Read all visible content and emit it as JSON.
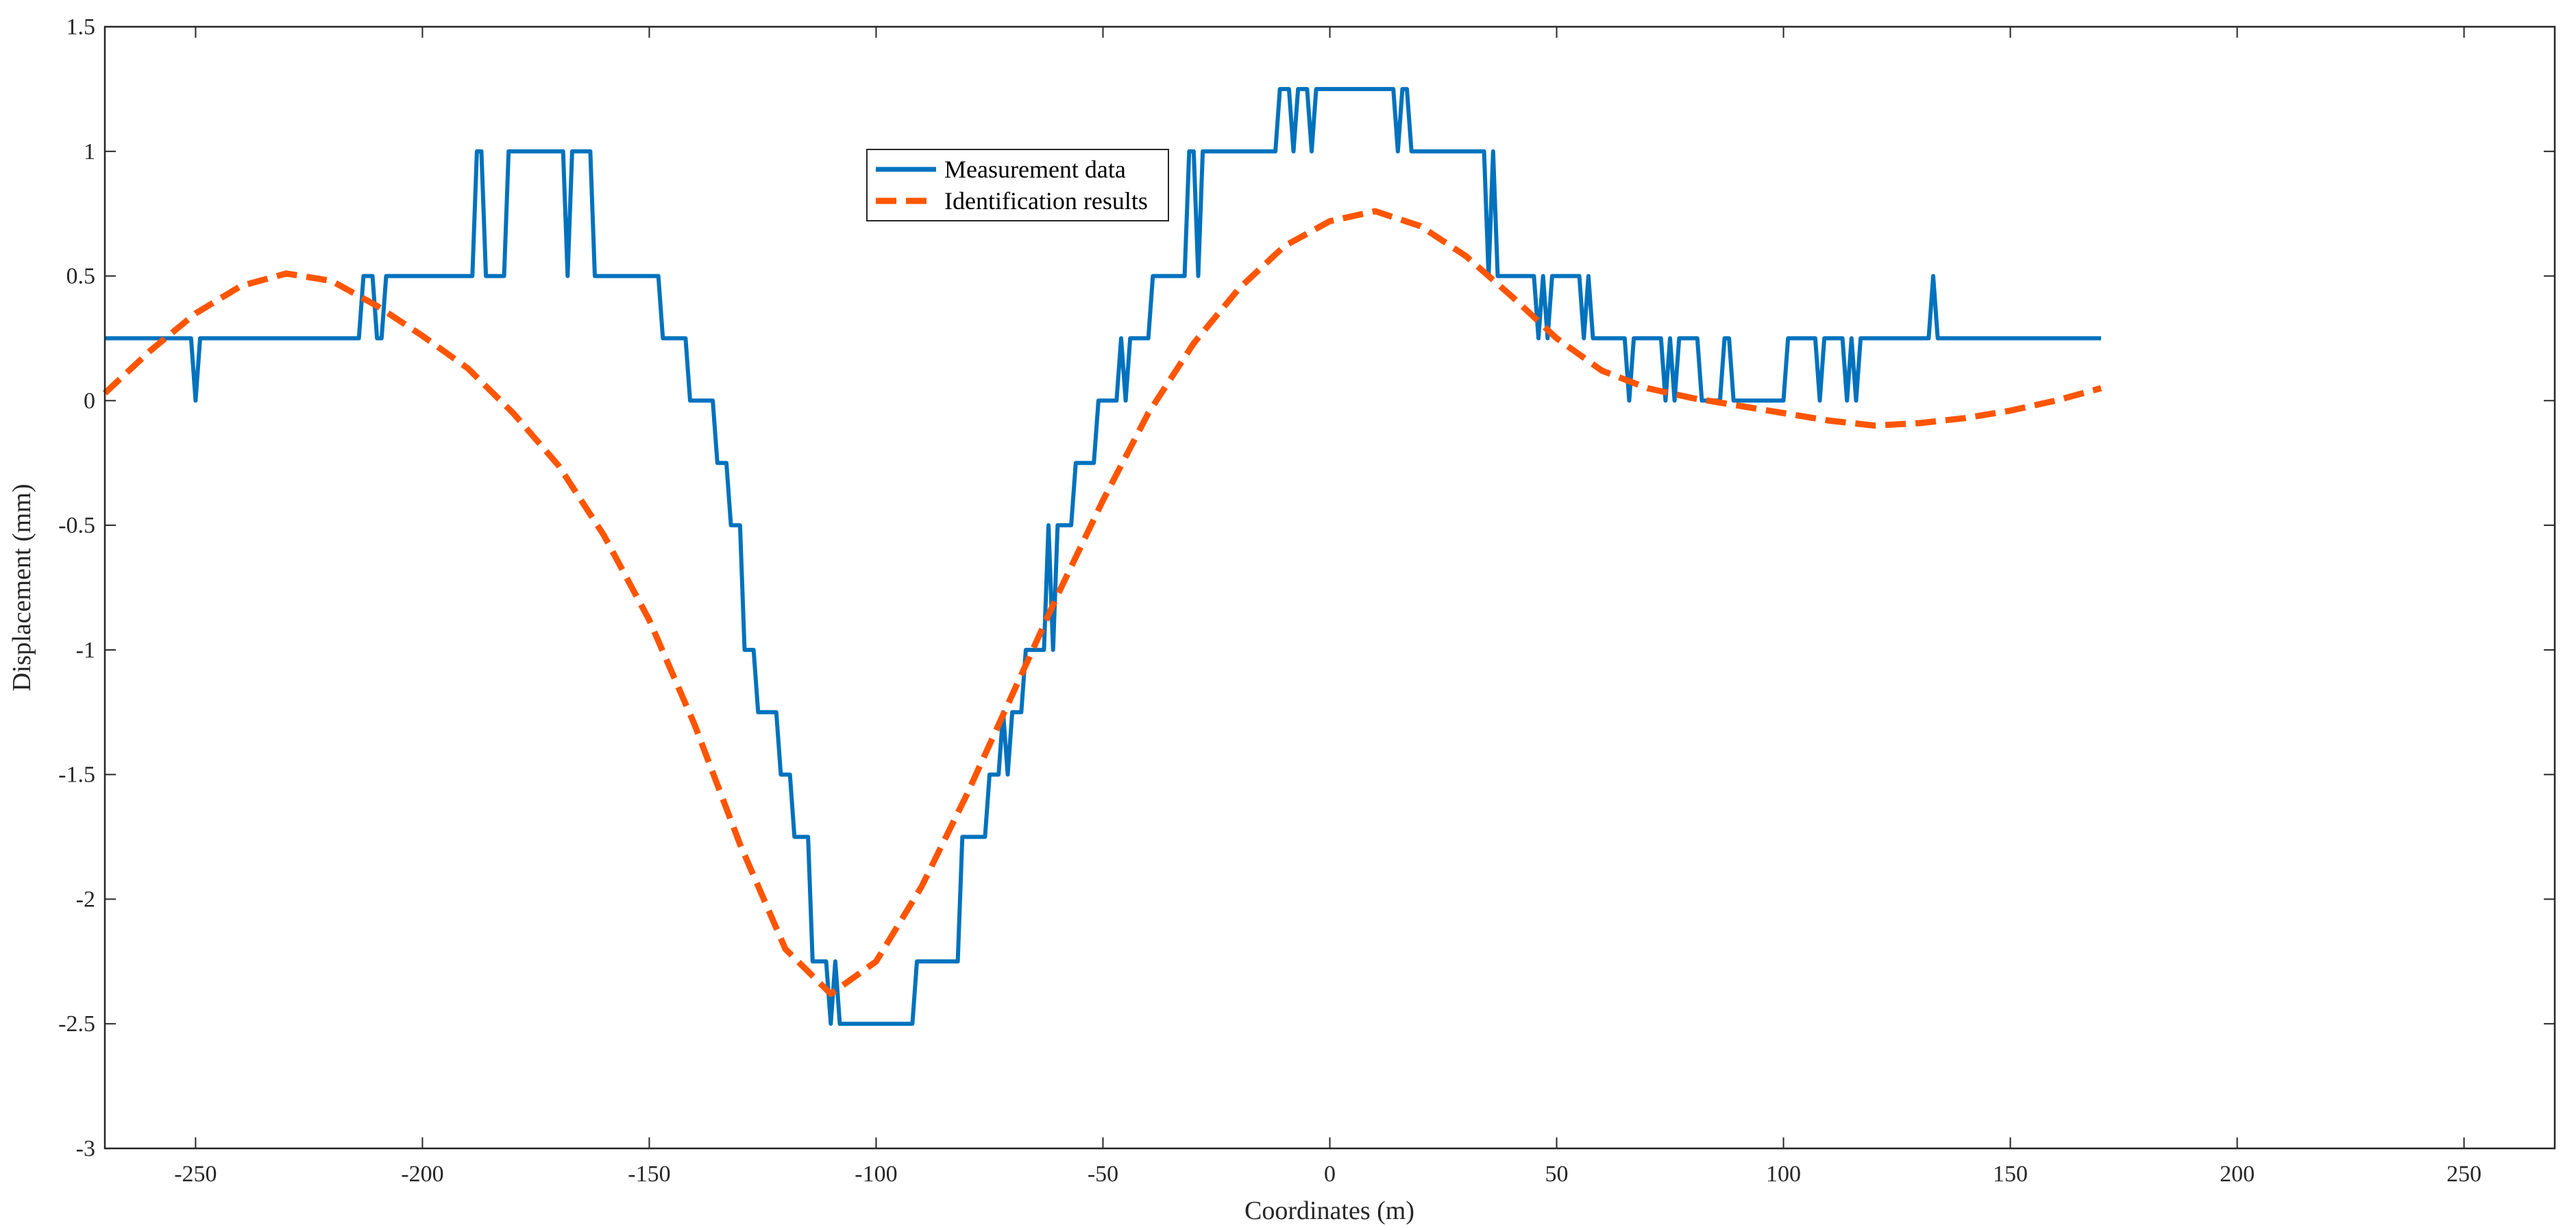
{
  "chart_data": {
    "type": "line",
    "title": "",
    "xlabel": "Coordinates (m)",
    "ylabel": "Displacement (mm)",
    "xlim": [
      -270,
      270
    ],
    "ylim": [
      -3,
      1.5
    ],
    "xticks": [
      -250,
      -200,
      -150,
      -100,
      -50,
      0,
      50,
      100,
      150,
      200,
      250
    ],
    "yticks": [
      -3,
      -2.5,
      -2,
      -1.5,
      -1,
      -0.5,
      0,
      0.5,
      1,
      1.5
    ],
    "grid": false,
    "legend_placement": "top-center",
    "series": [
      {
        "name": "Measurement data",
        "color": "#0072BD",
        "style": "solid",
        "points": [
          [
            -270,
            0.25
          ],
          [
            -251,
            0.25
          ],
          [
            -250,
            0
          ],
          [
            -249,
            0.25
          ],
          [
            -214,
            0.25
          ],
          [
            -213,
            0.5
          ],
          [
            -211,
            0.5
          ],
          [
            -210,
            0.25
          ],
          [
            -209,
            0.25
          ],
          [
            -208,
            0.5
          ],
          [
            -189,
            0.5
          ],
          [
            -188,
            1
          ],
          [
            -187,
            1
          ],
          [
            -186,
            0.5
          ],
          [
            -182,
            0.5
          ],
          [
            -181,
            1
          ],
          [
            -169,
            1
          ],
          [
            -168,
            0.5
          ],
          [
            -167,
            1
          ],
          [
            -163,
            1
          ],
          [
            -162,
            0.5
          ],
          [
            -148,
            0.5
          ],
          [
            -147,
            0.25
          ],
          [
            -142,
            0.25
          ],
          [
            -141,
            0
          ],
          [
            -136,
            0
          ],
          [
            -135,
            -0.25
          ],
          [
            -133,
            -0.25
          ],
          [
            -132,
            -0.5
          ],
          [
            -130,
            -0.5
          ],
          [
            -129,
            -1
          ],
          [
            -127,
            -1
          ],
          [
            -126,
            -1.25
          ],
          [
            -122,
            -1.25
          ],
          [
            -121,
            -1.5
          ],
          [
            -119,
            -1.5
          ],
          [
            -118,
            -1.75
          ],
          [
            -115,
            -1.75
          ],
          [
            -114,
            -2.25
          ],
          [
            -111,
            -2.25
          ],
          [
            -110,
            -2.5
          ],
          [
            -109,
            -2.25
          ],
          [
            -108,
            -2.5
          ],
          [
            -92,
            -2.5
          ],
          [
            -91,
            -2.25
          ],
          [
            -82,
            -2.25
          ],
          [
            -81,
            -1.75
          ],
          [
            -76,
            -1.75
          ],
          [
            -75,
            -1.5
          ],
          [
            -73,
            -1.5
          ],
          [
            -72,
            -1.25
          ],
          [
            -71,
            -1.5
          ],
          [
            -70,
            -1.25
          ],
          [
            -68,
            -1.25
          ],
          [
            -67,
            -1
          ],
          [
            -63,
            -1
          ],
          [
            -62,
            -0.5
          ],
          [
            -61,
            -1
          ],
          [
            -60,
            -0.5
          ],
          [
            -57,
            -0.5
          ],
          [
            -56,
            -0.25
          ],
          [
            -52,
            -0.25
          ],
          [
            -51,
            0
          ],
          [
            -47,
            0
          ],
          [
            -46,
            0.25
          ],
          [
            -45,
            0
          ],
          [
            -44,
            0.25
          ],
          [
            -40,
            0.25
          ],
          [
            -39,
            0.5
          ],
          [
            -32,
            0.5
          ],
          [
            -31,
            1
          ],
          [
            -30,
            1
          ],
          [
            -29,
            0.5
          ],
          [
            -28,
            1
          ],
          [
            -12,
            1
          ],
          [
            -11,
            1.25
          ],
          [
            -9,
            1.25
          ],
          [
            -8,
            1
          ],
          [
            -7,
            1.25
          ],
          [
            -5,
            1.25
          ],
          [
            -4,
            1
          ],
          [
            -3,
            1.25
          ],
          [
            14,
            1.25
          ],
          [
            15,
            1
          ],
          [
            16,
            1.25
          ],
          [
            17,
            1.25
          ],
          [
            18,
            1
          ],
          [
            34,
            1
          ],
          [
            35,
            0.5
          ],
          [
            36,
            1
          ],
          [
            37,
            0.5
          ],
          [
            45,
            0.5
          ],
          [
            46,
            0.25
          ],
          [
            47,
            0.5
          ],
          [
            48,
            0.25
          ],
          [
            49,
            0.5
          ],
          [
            55,
            0.5
          ],
          [
            56,
            0.25
          ],
          [
            57,
            0.5
          ],
          [
            58,
            0.25
          ],
          [
            65,
            0.25
          ],
          [
            66,
            0
          ],
          [
            67,
            0.25
          ],
          [
            73,
            0.25
          ],
          [
            74,
            0
          ],
          [
            75,
            0.25
          ],
          [
            76,
            0
          ],
          [
            77,
            0.25
          ],
          [
            81,
            0.25
          ],
          [
            82,
            0
          ],
          [
            86,
            0
          ],
          [
            87,
            0.25
          ],
          [
            88,
            0.25
          ],
          [
            89,
            0
          ],
          [
            100,
            0
          ],
          [
            101,
            0.25
          ],
          [
            107,
            0.25
          ],
          [
            108,
            0
          ],
          [
            109,
            0.25
          ],
          [
            113,
            0.25
          ],
          [
            114,
            0
          ],
          [
            115,
            0.25
          ],
          [
            116,
            0
          ],
          [
            117,
            0.25
          ],
          [
            132,
            0.25
          ],
          [
            133,
            0.5
          ],
          [
            134,
            0.25
          ],
          [
            170,
            0.25
          ]
        ]
      },
      {
        "name": "Identification results",
        "color": "#FF5500",
        "style": "dashed",
        "points": [
          [
            -270,
            0.03
          ],
          [
            -260,
            0.2
          ],
          [
            -250,
            0.35
          ],
          [
            -240,
            0.46
          ],
          [
            -230,
            0.51
          ],
          [
            -220,
            0.48
          ],
          [
            -210,
            0.38
          ],
          [
            -200,
            0.26
          ],
          [
            -190,
            0.13
          ],
          [
            -180,
            -0.05
          ],
          [
            -170,
            -0.26
          ],
          [
            -160,
            -0.54
          ],
          [
            -150,
            -0.88
          ],
          [
            -140,
            -1.3
          ],
          [
            -130,
            -1.78
          ],
          [
            -120,
            -2.2
          ],
          [
            -110,
            -2.38
          ],
          [
            -100,
            -2.25
          ],
          [
            -90,
            -1.95
          ],
          [
            -80,
            -1.58
          ],
          [
            -70,
            -1.18
          ],
          [
            -60,
            -0.78
          ],
          [
            -50,
            -0.4
          ],
          [
            -40,
            -0.05
          ],
          [
            -30,
            0.23
          ],
          [
            -20,
            0.45
          ],
          [
            -10,
            0.62
          ],
          [
            0,
            0.72
          ],
          [
            10,
            0.76
          ],
          [
            20,
            0.7
          ],
          [
            30,
            0.58
          ],
          [
            40,
            0.42
          ],
          [
            50,
            0.25
          ],
          [
            60,
            0.12
          ],
          [
            70,
            0.05
          ],
          [
            80,
            0.01
          ],
          [
            90,
            -0.02
          ],
          [
            100,
            -0.05
          ],
          [
            110,
            -0.08
          ],
          [
            120,
            -0.1
          ],
          [
            130,
            -0.09
          ],
          [
            140,
            -0.07
          ],
          [
            150,
            -0.04
          ],
          [
            160,
            0
          ],
          [
            170,
            0.05
          ]
        ]
      }
    ]
  }
}
